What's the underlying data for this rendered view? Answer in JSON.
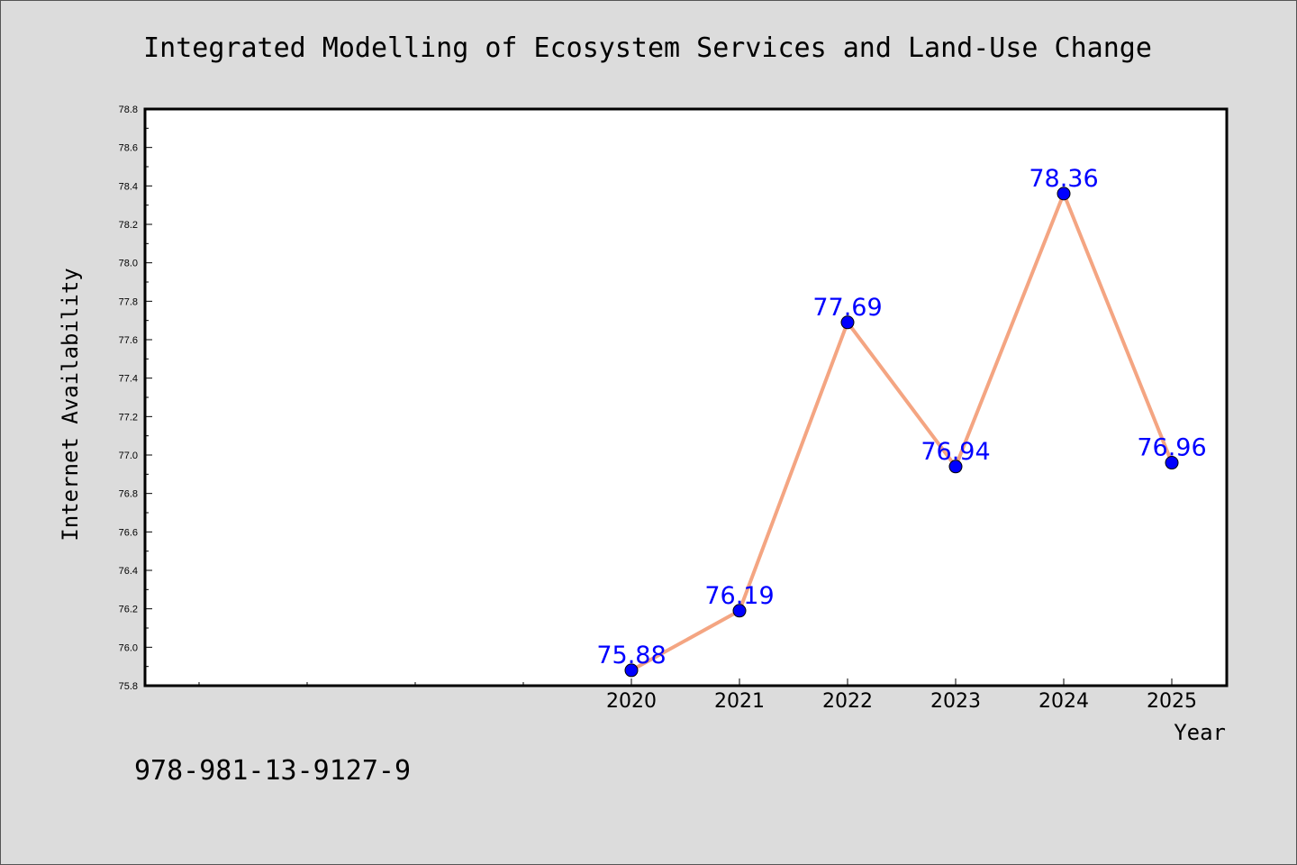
{
  "chart_data": {
    "type": "line",
    "title": "Integrated Modelling of Ecosystem Services and Land-Use Change",
    "xlabel": "Year",
    "ylabel": "Internet Availability",
    "x": [
      "2020",
      "2021",
      "2022",
      "2023",
      "2024",
      "2025"
    ],
    "series": [
      {
        "values": [
          75.88,
          76.19,
          77.69,
          76.94,
          78.36,
          76.96
        ],
        "data_labels": [
          "75.88",
          "76.19",
          "77.69",
          "76.94",
          "78.36",
          "76.96"
        ],
        "line_color": "#f4a582",
        "marker_color": "#0000ff"
      }
    ],
    "ylim": [
      75.8,
      78.8
    ],
    "yticks": [
      "75.8",
      "76.0",
      "76.2",
      "76.4",
      "76.6",
      "76.8",
      "77.0",
      "77.2",
      "77.4",
      "77.6",
      "77.8",
      "78.0",
      "78.2",
      "78.4",
      "78.6",
      "78.8"
    ],
    "grid": false,
    "legend": "none"
  },
  "footnote": "978-981-13-9127-9",
  "colors": {
    "background": "#dcdcdc",
    "plot_background": "#ffffff",
    "line": "#f4a582",
    "marker": "#0000ff",
    "data_label": "#0000ff"
  }
}
